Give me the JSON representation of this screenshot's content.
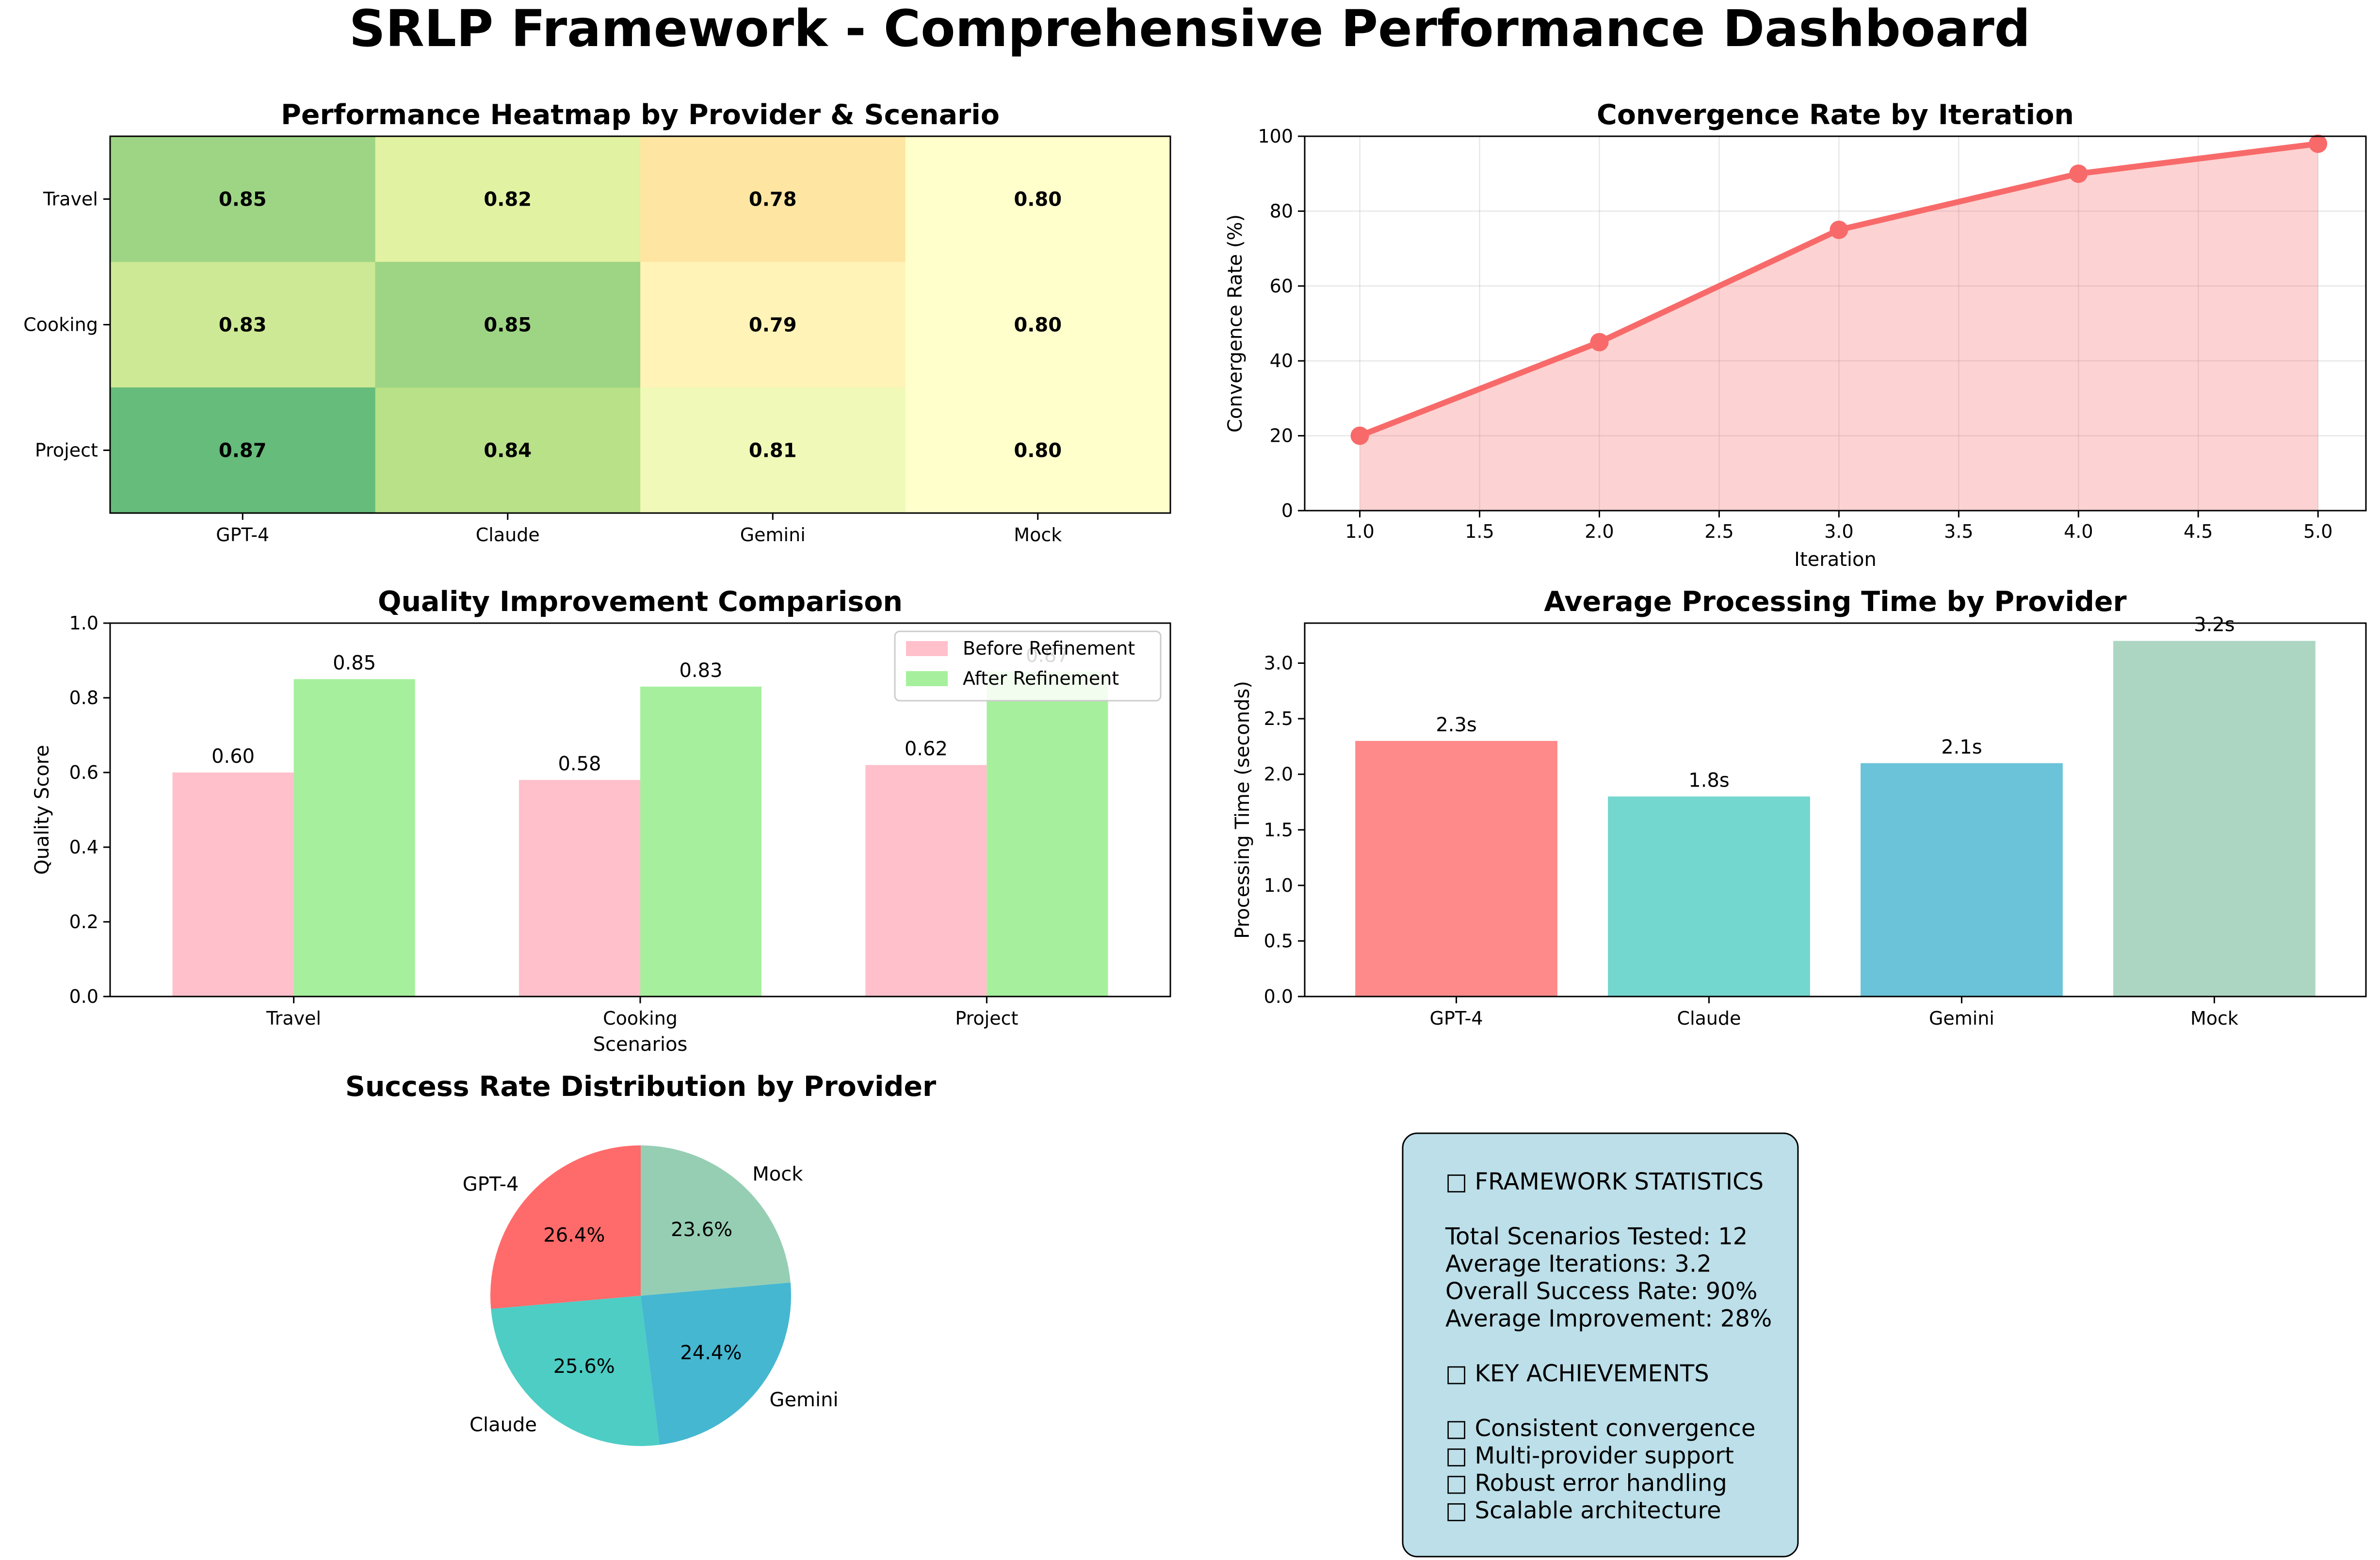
{
  "title": "SRLP Framework - Comprehensive Performance Dashboard",
  "chart_data": [
    {
      "type": "heatmap",
      "title": "Performance Heatmap by Provider & Scenario",
      "x_categories": [
        "GPT-4",
        "Claude",
        "Gemini",
        "Mock"
      ],
      "y_categories": [
        "Travel",
        "Cooking",
        "Project"
      ],
      "values": [
        [
          0.85,
          0.82,
          0.78,
          0.8
        ],
        [
          0.83,
          0.85,
          0.79,
          0.8
        ],
        [
          0.87,
          0.84,
          0.81,
          0.8
        ]
      ],
      "value_labels": [
        [
          "0.85",
          "0.82",
          "0.78",
          "0.80"
        ],
        [
          "0.83",
          "0.85",
          "0.79",
          "0.80"
        ],
        [
          "0.87",
          "0.84",
          "0.81",
          "0.80"
        ]
      ],
      "colormap": "RdYlGn",
      "vrange": [
        0.75,
        0.9
      ]
    },
    {
      "type": "area",
      "title": "Convergence Rate by Iteration",
      "xlabel": "Iteration",
      "ylabel": "Convergence Rate (%)",
      "x": [
        1,
        2,
        3,
        4,
        5
      ],
      "y": [
        20,
        45,
        75,
        90,
        98
      ],
      "xlim": [
        0.77,
        5.2
      ],
      "ylim": [
        0,
        100
      ],
      "x_ticks": [
        "1.0",
        "1.5",
        "2.0",
        "2.5",
        "3.0",
        "3.5",
        "4.0",
        "4.5",
        "5.0"
      ],
      "y_ticks": [
        "0",
        "20",
        "40",
        "60",
        "80",
        "100"
      ],
      "grid": true,
      "color": "#f86a6a"
    },
    {
      "type": "bar",
      "title": "Quality Improvement Comparison",
      "xlabel": "Scenarios",
      "ylabel": "Quality Score",
      "categories": [
        "Travel",
        "Cooking",
        "Project"
      ],
      "series": [
        {
          "name": "Before Refinement",
          "values": [
            0.6,
            0.58,
            0.62
          ],
          "labels": [
            "0.60",
            "0.58",
            "0.62"
          ],
          "color": "#ffc0cb"
        },
        {
          "name": "After Refinement",
          "values": [
            0.85,
            0.83,
            0.87
          ],
          "labels": [
            "0.85",
            "0.83",
            "0.87"
          ],
          "color": "#a6f09d"
        }
      ],
      "ylim": [
        0,
        1.0
      ],
      "y_ticks": [
        "0.0",
        "0.2",
        "0.4",
        "0.6",
        "0.8",
        "1.0"
      ],
      "legend": "top-right"
    },
    {
      "type": "bar",
      "title": "Average Processing Time by Provider",
      "ylabel": "Processing Time (seconds)",
      "categories": [
        "GPT-4",
        "Claude",
        "Gemini",
        "Mock"
      ],
      "values": [
        2.3,
        1.8,
        2.1,
        3.2
      ],
      "labels": [
        "2.3s",
        "1.8s",
        "2.1s",
        "3.2s"
      ],
      "colors": [
        "#ff8a8a",
        "#73d6cf",
        "#6ac3d9",
        "#acd6c2"
      ],
      "ylim": [
        0,
        3.36
      ],
      "y_ticks": [
        "0.0",
        "0.5",
        "1.0",
        "1.5",
        "2.0",
        "2.5",
        "3.0"
      ]
    },
    {
      "type": "pie",
      "title": "Success Rate Distribution by Provider",
      "labels": [
        "GPT-4",
        "Claude",
        "Gemini",
        "Mock"
      ],
      "values": [
        26.4,
        25.6,
        24.4,
        23.6
      ],
      "value_labels": [
        "26.4%",
        "25.6%",
        "24.4%",
        "23.6%"
      ],
      "colors": [
        "#ff6b6b",
        "#4ecdc4",
        "#45b7d1",
        "#96ceb4"
      ]
    }
  ],
  "stats_box": {
    "lines": [
      "□ FRAMEWORK STATISTICS",
      "",
      "Total Scenarios Tested: 12",
      "Average Iterations: 3.2",
      "Overall Success Rate: 90%",
      "Average Improvement: 28%",
      "",
      "□ KEY ACHIEVEMENTS",
      "",
      "□ Consistent convergence",
      "□ Multi-provider support",
      "□ Robust error handling",
      "□ Scalable architecture"
    ],
    "background": "#bcdfe9"
  }
}
